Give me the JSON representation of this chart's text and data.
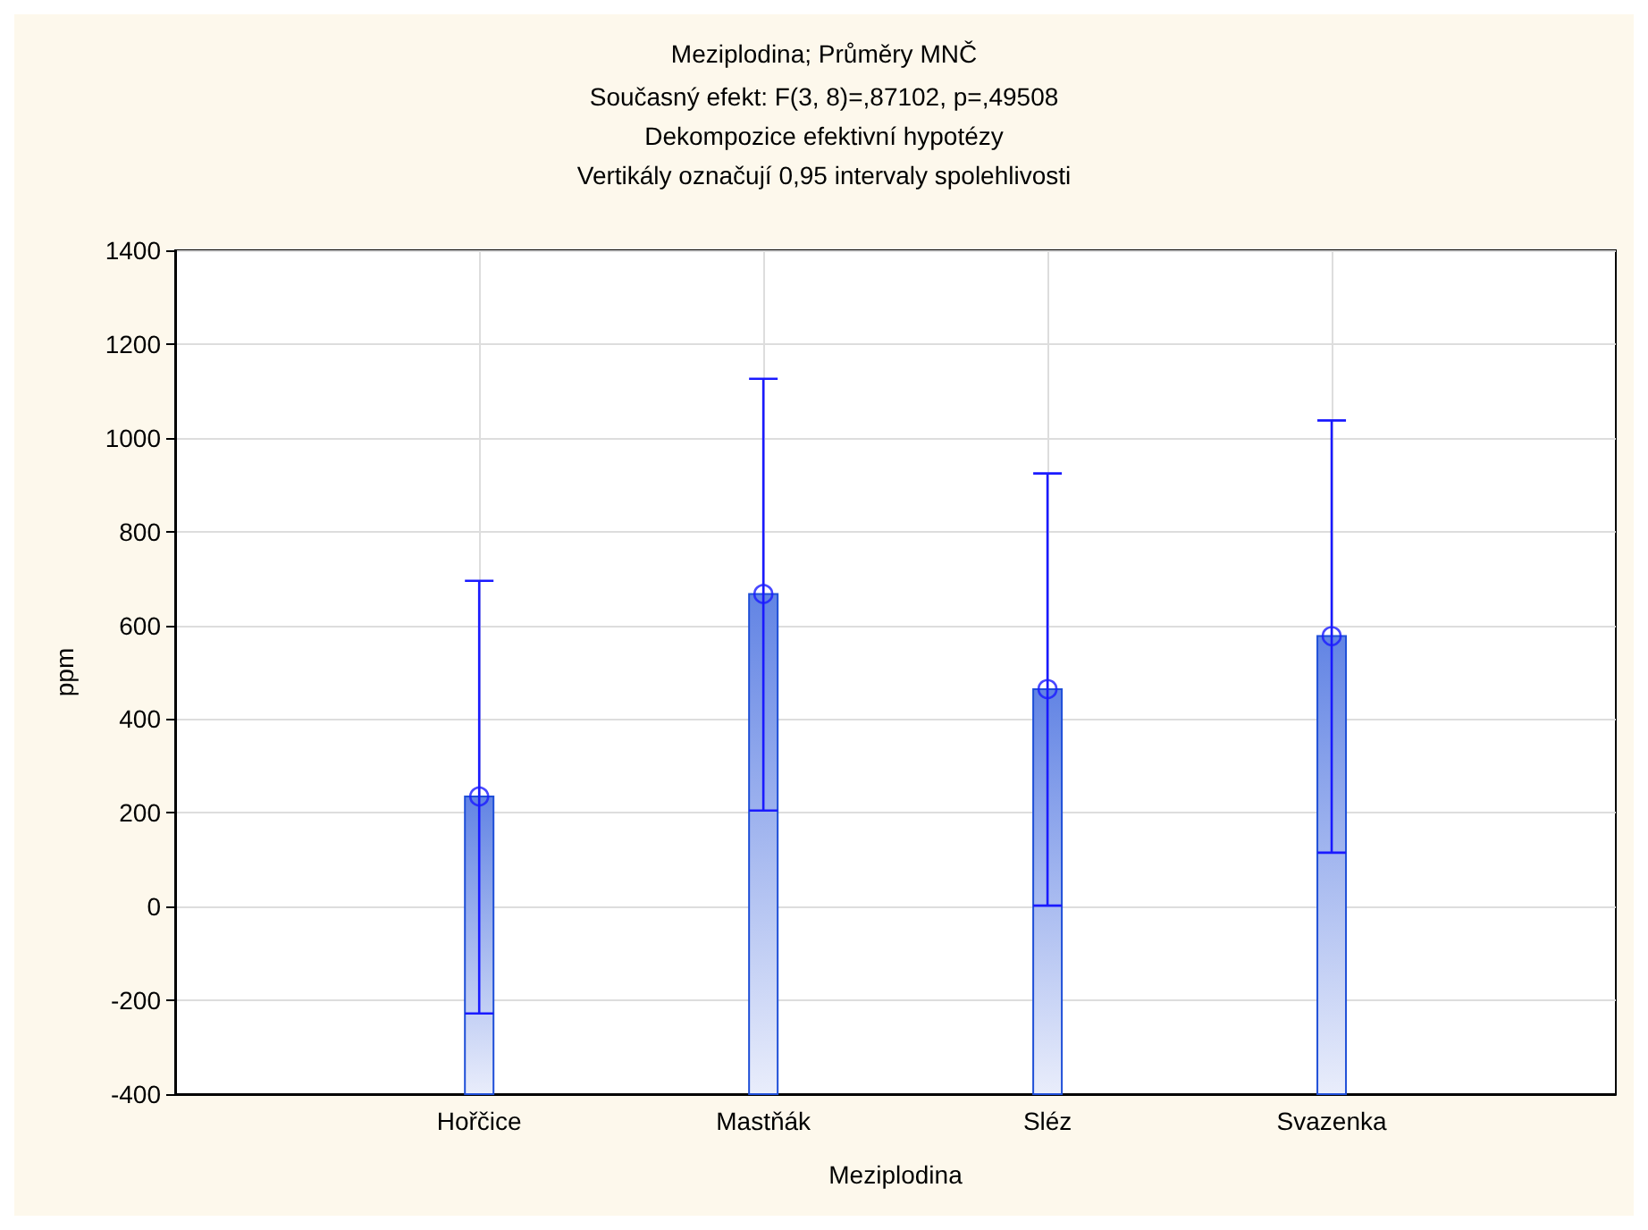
{
  "chart_data": {
    "type": "bar",
    "title": "Meziplodina; Průměry MNČ",
    "subtitle": "Současný efekt: F(3, 8)=,87102, p=,49508\nDekompozice efektivní hypotézy\nVertikály označují 0,95 intervaly spolehlivosti",
    "xlabel": "Meziplodina",
    "ylabel": "ppm",
    "categories": [
      "Hořčice",
      "Mastňák",
      "Sléz",
      "Svazenka"
    ],
    "series": [
      {
        "color": "#1f4fd8",
        "base": [
          -400,
          -400,
          -400,
          -400
        ],
        "values": [
          635,
          1067,
          864,
          977
        ]
      },
      {
        "type": "scatter",
        "color": "#1a1aff",
        "x": [
          "Hořčice",
          "Mastňák",
          "Sléz",
          "Svazenka"
        ],
        "values": [
          235,
          667,
          464,
          577
        ],
        "errors": [
          [
            -228,
            695
          ],
          [
            205,
            1126
          ],
          [
            2,
            924
          ],
          [
            115,
            1037
          ]
        ]
      }
    ],
    "ylim": [
      -400,
      1400
    ],
    "yticks": [
      -400,
      -200,
      0,
      200,
      400,
      600,
      800,
      1000,
      1200,
      1400
    ],
    "grid": true,
    "marker": "circle"
  }
}
